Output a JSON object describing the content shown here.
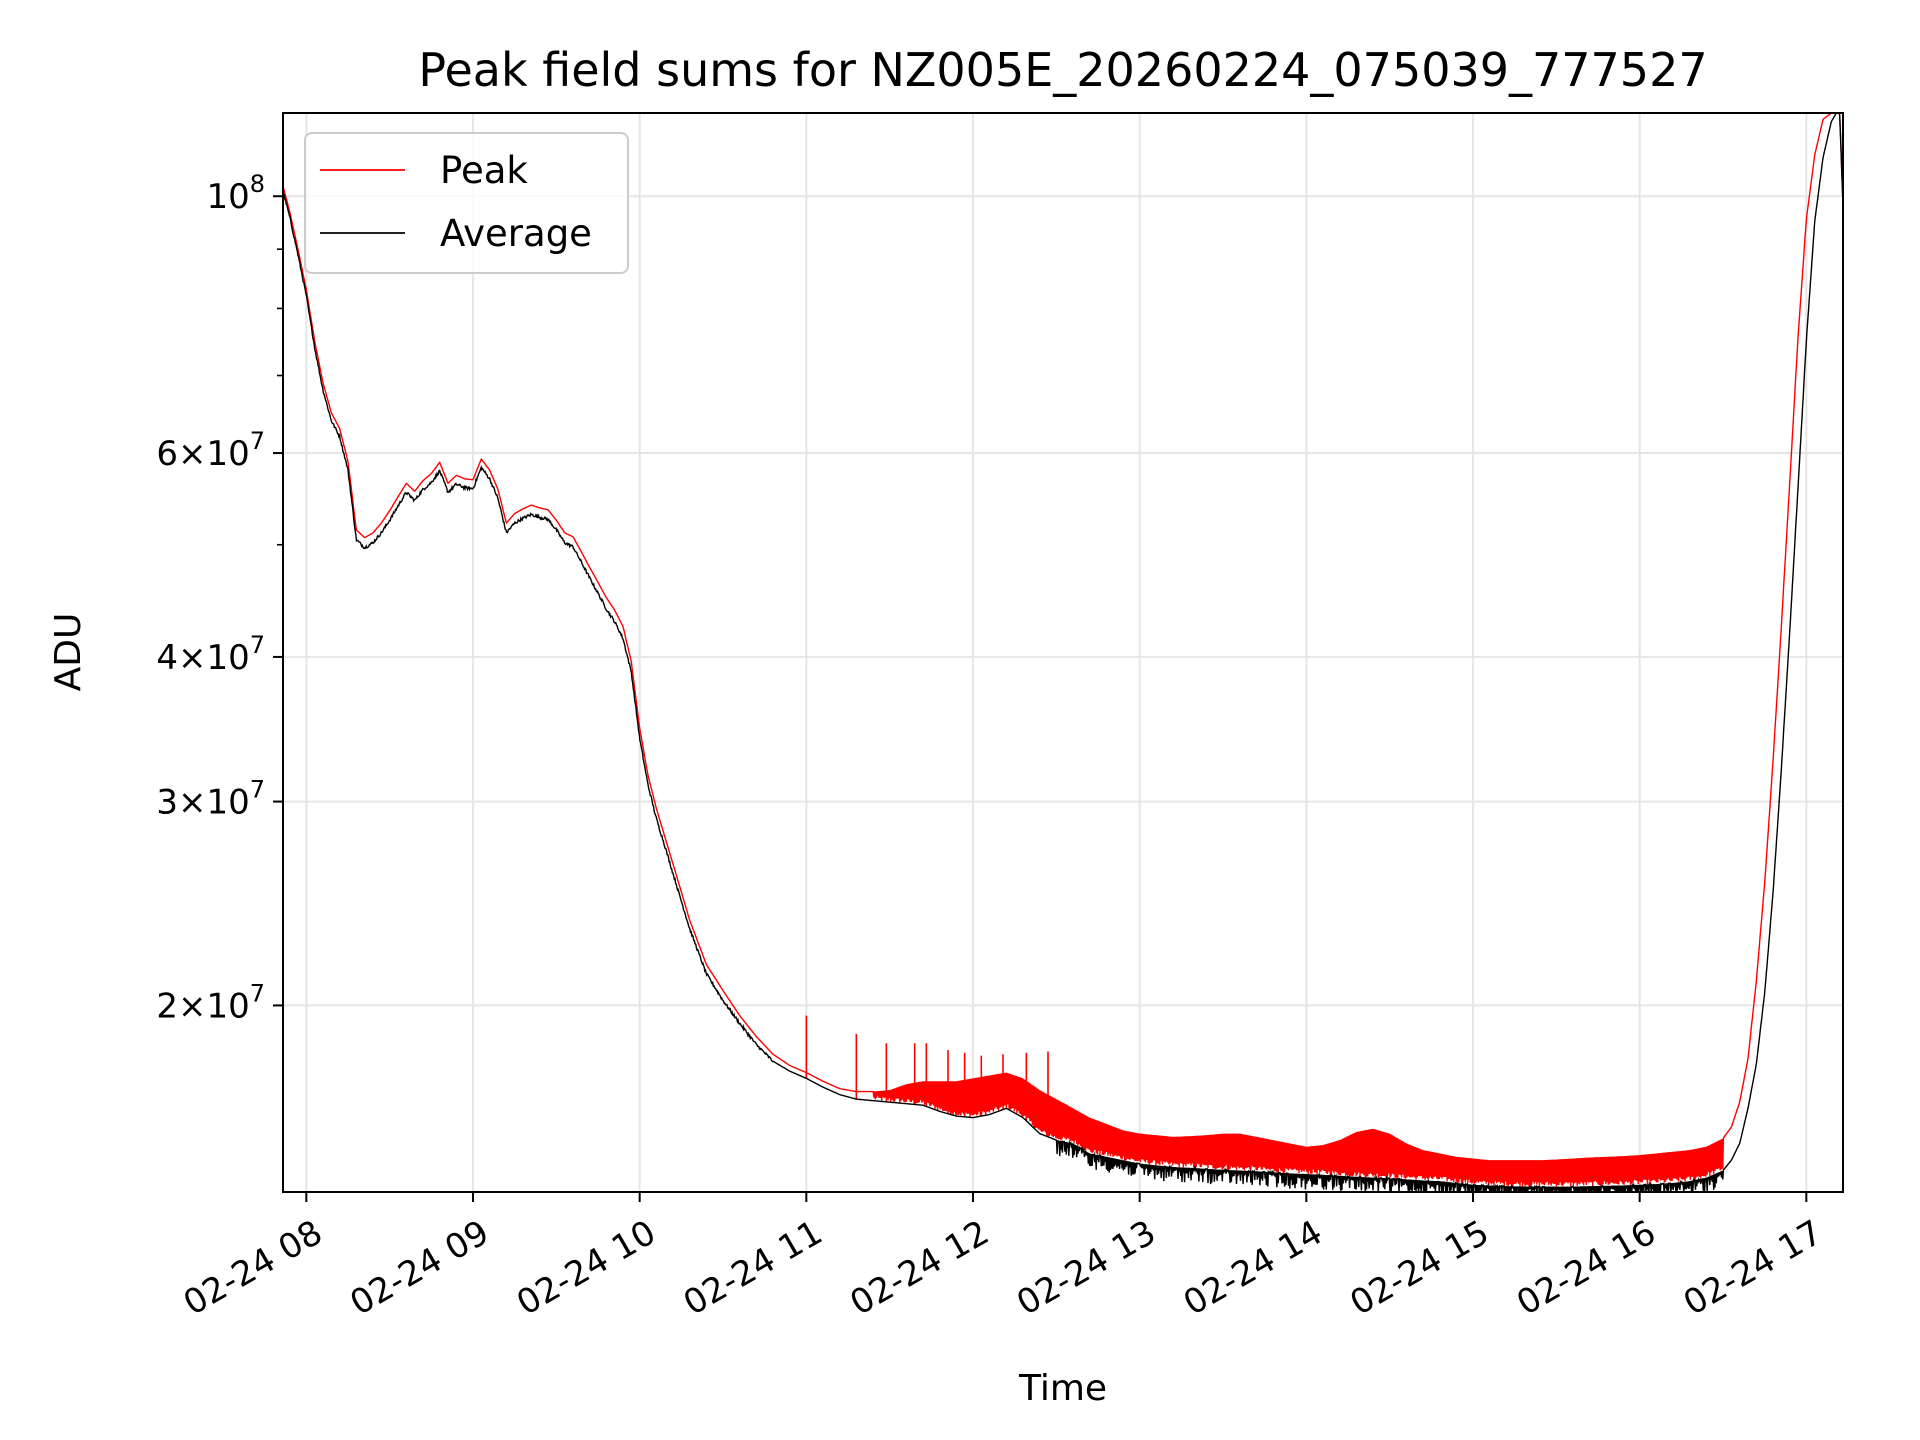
{
  "chart_data": {
    "type": "line",
    "title": "Peak field sums for NZ005E_20260224_075039_777527",
    "xlabel": "Time",
    "ylabel": "ADU",
    "yscale": "log",
    "grid": true,
    "legend_location": "upper-left",
    "x_unit": "hours",
    "xlim": [
      7.86,
      17.22
    ],
    "ylim": [
      13800000,
      118000000
    ],
    "x_ticks": [
      {
        "value": 8,
        "label": "02-24 08"
      },
      {
        "value": 9,
        "label": "02-24 09"
      },
      {
        "value": 10,
        "label": "02-24 10"
      },
      {
        "value": 11,
        "label": "02-24 11"
      },
      {
        "value": 12,
        "label": "02-24 12"
      },
      {
        "value": 13,
        "label": "02-24 13"
      },
      {
        "value": 14,
        "label": "02-24 14"
      },
      {
        "value": 15,
        "label": "02-24 15"
      },
      {
        "value": 16,
        "label": "02-24 16"
      },
      {
        "value": 17,
        "label": "02-24 17"
      }
    ],
    "y_major_ticks": [
      {
        "value": 100000000,
        "mantissa": "",
        "exponent": "8"
      },
      {
        "value": 60000000,
        "mantissa": "6",
        "exponent": "7"
      },
      {
        "value": 40000000,
        "mantissa": "4",
        "exponent": "7"
      },
      {
        "value": 30000000,
        "mantissa": "3",
        "exponent": "7"
      },
      {
        "value": 20000000,
        "mantissa": "2",
        "exponent": "7"
      }
    ],
    "y_minor_ticks": [
      90000000,
      80000000,
      70000000,
      50000000
    ],
    "series": [
      {
        "name": "Average",
        "color": "#000000",
        "x": [
          7.86,
          7.9,
          7.95,
          8.0,
          8.05,
          8.1,
          8.15,
          8.2,
          8.25,
          8.3,
          8.35,
          8.4,
          8.45,
          8.5,
          8.55,
          8.6,
          8.65,
          8.7,
          8.75,
          8.8,
          8.85,
          8.9,
          8.95,
          9.0,
          9.05,
          9.1,
          9.15,
          9.2,
          9.25,
          9.3,
          9.35,
          9.4,
          9.45,
          9.5,
          9.55,
          9.6,
          9.65,
          9.7,
          9.75,
          9.8,
          9.85,
          9.9,
          9.95,
          10.0,
          10.05,
          10.1,
          10.15,
          10.2,
          10.3,
          10.4,
          10.5,
          10.6,
          10.7,
          10.8,
          10.9,
          11.0,
          11.1,
          11.2,
          11.3,
          11.4,
          11.5,
          11.6,
          11.7,
          11.8,
          11.9,
          12.0,
          12.1,
          12.2,
          12.3,
          12.4,
          12.5,
          12.6,
          12.7,
          12.8,
          12.9,
          13.0,
          13.1,
          13.2,
          13.3,
          13.4,
          13.5,
          13.6,
          13.7,
          13.8,
          13.9,
          14.0,
          14.1,
          14.2,
          14.3,
          14.4,
          14.5,
          14.6,
          14.7,
          14.8,
          14.9,
          15.0,
          15.1,
          15.2,
          15.3,
          15.4,
          15.5,
          15.6,
          15.7,
          15.8,
          15.9,
          16.0,
          16.1,
          16.2,
          16.3,
          16.4,
          16.5,
          16.55,
          16.6,
          16.65,
          16.7,
          16.75,
          16.8,
          16.85,
          16.9,
          16.95,
          17.0,
          17.05,
          17.1,
          17.15,
          17.18,
          17.2,
          17.22
        ],
        "values": [
          101000000,
          96000000,
          89000000,
          82000000,
          74000000,
          68000000,
          64000000,
          62000000,
          58000000,
          50500000,
          49700000,
          50200000,
          51200000,
          52500000,
          54000000,
          55500000,
          54600000,
          55800000,
          56600000,
          57900000,
          55500000,
          56400000,
          56000000,
          55900000,
          58300000,
          57000000,
          54800000,
          51200000,
          52200000,
          52700000,
          53100000,
          52800000,
          52600000,
          51500000,
          50200000,
          49800000,
          48300000,
          46800000,
          45400000,
          44000000,
          42900000,
          41500000,
          38800000,
          34000000,
          31000000,
          29000000,
          27500000,
          26000000,
          23300000,
          21300000,
          20200000,
          19300000,
          18500000,
          17900000,
          17550000,
          17300000,
          17000000,
          16750000,
          16600000,
          16550000,
          16500000,
          16450000,
          16400000,
          16200000,
          16050000,
          16000000,
          16100000,
          16300000,
          16000000,
          15500000,
          15300000,
          15200000,
          14900000,
          14800000,
          14700000,
          14600000,
          14550000,
          14500000,
          14480000,
          14450000,
          14420000,
          14400000,
          14380000,
          14350000,
          14320000,
          14300000,
          14280000,
          14250000,
          14220000,
          14200000,
          14180000,
          14150000,
          14120000,
          14100000,
          14050000,
          14000000,
          13980000,
          13960000,
          13950000,
          13950000,
          13950000,
          13950000,
          13960000,
          13970000,
          13980000,
          14000000,
          14020000,
          14050000,
          14100000,
          14200000,
          14400000,
          14700000,
          15200000,
          16300000,
          17800000,
          20500000,
          25000000,
          32000000,
          42000000,
          56000000,
          75000000,
          95000000,
          108000000,
          116000000,
          118000000,
          118000000,
          98000000
        ]
      },
      {
        "name": "Peak",
        "color": "#ff0000",
        "x": [
          7.86,
          7.9,
          7.95,
          8.0,
          8.05,
          8.1,
          8.15,
          8.2,
          8.25,
          8.3,
          8.35,
          8.4,
          8.45,
          8.5,
          8.55,
          8.6,
          8.65,
          8.7,
          8.75,
          8.8,
          8.85,
          8.9,
          8.95,
          9.0,
          9.05,
          9.1,
          9.15,
          9.2,
          9.25,
          9.3,
          9.35,
          9.4,
          9.45,
          9.5,
          9.55,
          9.6,
          9.65,
          9.7,
          9.75,
          9.8,
          9.85,
          9.9,
          9.95,
          10.0,
          10.05,
          10.1,
          10.15,
          10.2,
          10.3,
          10.4,
          10.5,
          10.6,
          10.7,
          10.8,
          10.9,
          11.0,
          11.1,
          11.2,
          11.3,
          11.4,
          11.5,
          11.6,
          11.7,
          11.8,
          11.9,
          12.0,
          12.1,
          12.2,
          12.3,
          12.4,
          12.5,
          12.6,
          12.7,
          12.8,
          12.9,
          13.0,
          13.1,
          13.2,
          13.3,
          13.4,
          13.5,
          13.6,
          13.7,
          13.8,
          13.9,
          14.0,
          14.1,
          14.2,
          14.3,
          14.4,
          14.5,
          14.6,
          14.7,
          14.8,
          14.9,
          15.0,
          15.1,
          15.2,
          15.3,
          15.4,
          15.5,
          15.6,
          15.7,
          15.8,
          15.9,
          16.0,
          16.1,
          16.2,
          16.3,
          16.4,
          16.5,
          16.55,
          16.6,
          16.65,
          16.7,
          16.75,
          16.8,
          16.85,
          16.9,
          16.95,
          17.0,
          17.05,
          17.1,
          17.15,
          17.18,
          17.2,
          17.22
        ],
        "values": [
          102000000,
          97000000,
          90000000,
          83000000,
          75000000,
          69000000,
          65000000,
          63000000,
          59000000,
          51500000,
          50700000,
          51200000,
          52200000,
          53500000,
          55000000,
          56500000,
          55600000,
          56800000,
          57600000,
          58900000,
          56500000,
          57400000,
          57000000,
          56900000,
          59300000,
          58000000,
          55800000,
          52200000,
          53200000,
          53700000,
          54100000,
          53800000,
          53600000,
          52500000,
          51200000,
          50800000,
          49300000,
          47800000,
          46400000,
          45000000,
          43900000,
          42500000,
          39600000,
          34700000,
          31600000,
          29600000,
          28000000,
          26500000,
          23700000,
          21700000,
          20600000,
          19600000,
          18800000,
          18150000,
          17750000,
          17500000,
          17200000,
          16950000,
          16850000,
          16850000,
          16900000,
          17100000,
          17200000,
          17200000,
          17200000,
          17300000,
          17400000,
          17500000,
          17300000,
          16900000,
          16600000,
          16300000,
          16000000,
          15800000,
          15600000,
          15500000,
          15450000,
          15400000,
          15420000,
          15450000,
          15500000,
          15500000,
          15400000,
          15300000,
          15200000,
          15100000,
          15150000,
          15300000,
          15550000,
          15650000,
          15500000,
          15200000,
          15000000,
          14900000,
          14800000,
          14750000,
          14700000,
          14700000,
          14700000,
          14700000,
          14720000,
          14750000,
          14780000,
          14800000,
          14820000,
          14850000,
          14900000,
          14950000,
          15000000,
          15100000,
          15350000,
          15700000,
          16500000,
          18000000,
          21000000,
          25500000,
          32500000,
          42500000,
          56500000,
          75500000,
          95500000,
          108500000,
          116500000,
          118000000,
          118000000,
          118000000,
          98000000
        ],
        "spikes": [
          {
            "x": 11.0,
            "value": 19600000
          },
          {
            "x": 11.3,
            "value": 18900000
          },
          {
            "x": 11.48,
            "value": 18550000
          },
          {
            "x": 11.65,
            "value": 18550000
          },
          {
            "x": 11.72,
            "value": 18550000
          },
          {
            "x": 11.85,
            "value": 18300000
          },
          {
            "x": 11.95,
            "value": 18200000
          },
          {
            "x": 12.05,
            "value": 18100000
          },
          {
            "x": 12.18,
            "value": 18150000
          },
          {
            "x": 12.32,
            "value": 18200000
          },
          {
            "x": 12.45,
            "value": 18250000
          }
        ]
      }
    ]
  }
}
